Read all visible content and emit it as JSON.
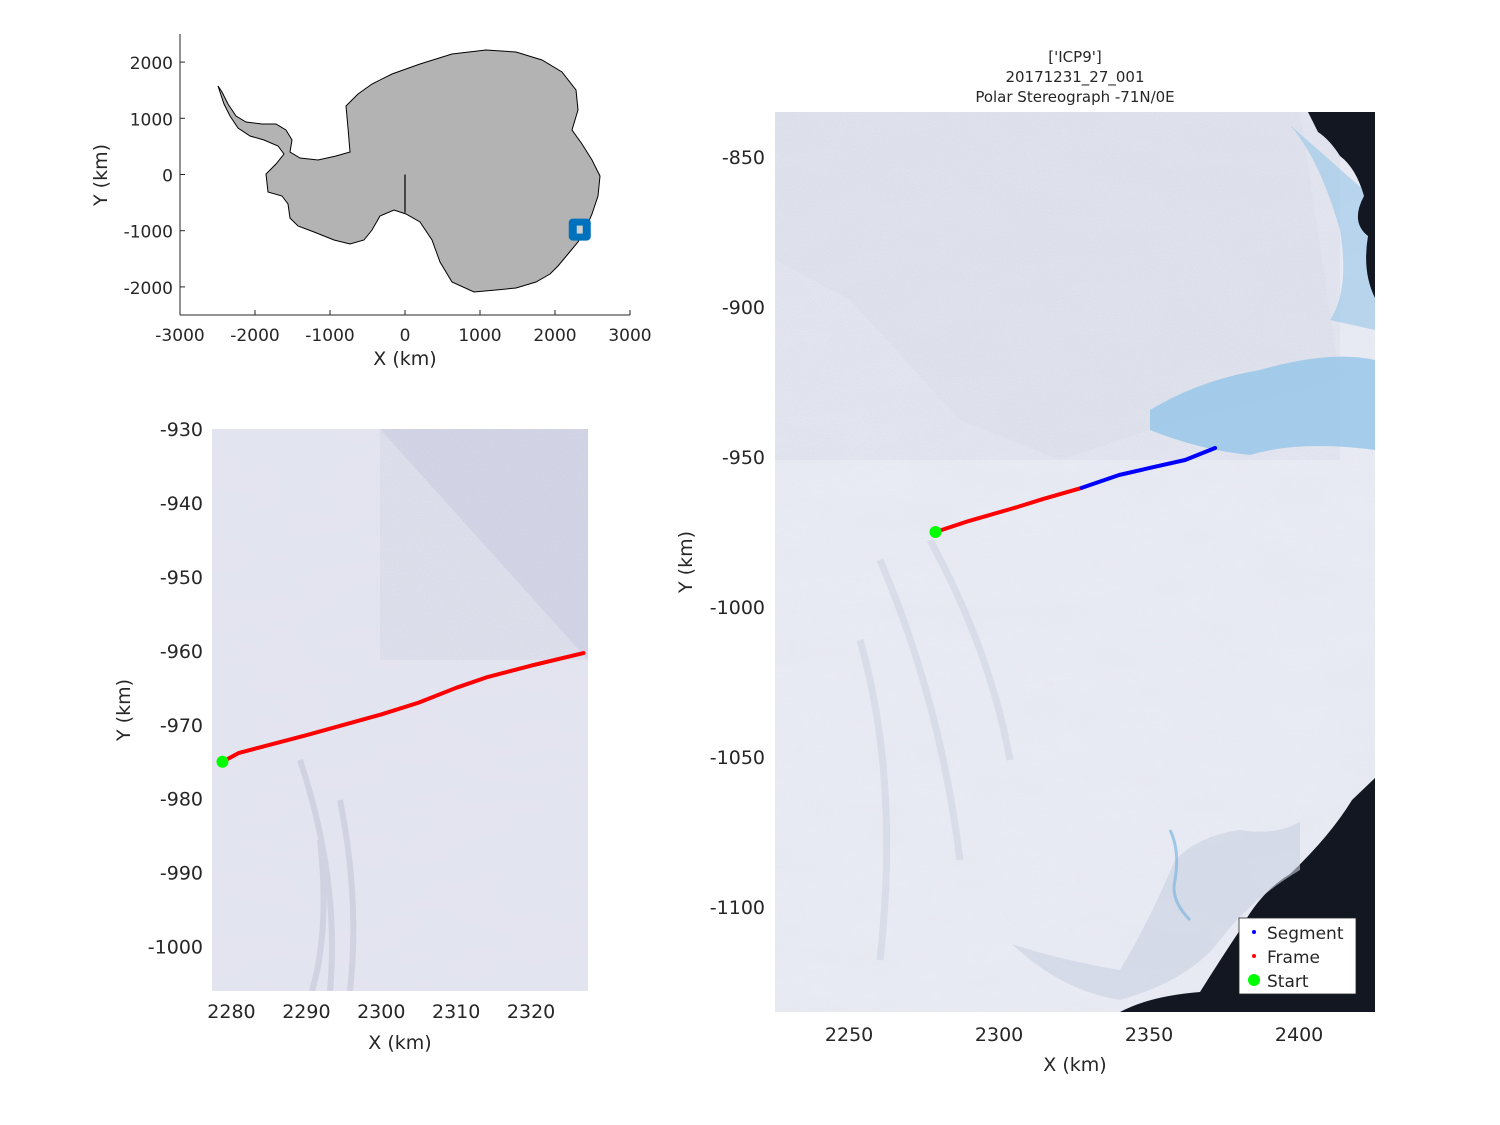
{
  "colors": {
    "land": "#b3b3b3",
    "ice": "#e9ebf4",
    "ice_shadow": "#cfd3e2",
    "ocean": "#121722",
    "melt": "#8fc3e8",
    "segment": "#0000ff",
    "frame": "#ff0000",
    "start": "#00ff00",
    "locator": "#0072bd",
    "axis": "#262626"
  },
  "overview": {
    "xlabel": "X (km)",
    "ylabel": "Y (km)",
    "xlim": [
      -3000,
      3000
    ],
    "ylim": [
      -2500,
      2500
    ],
    "xticks": [
      -3000,
      -2000,
      -1000,
      0,
      1000,
      2000,
      3000
    ],
    "yticks": [
      -2000,
      -1000,
      0,
      1000,
      2000
    ],
    "xtick_labels": [
      "-3000",
      "-2000",
      "-1000",
      "0",
      "1000",
      "2000",
      "3000"
    ],
    "ytick_labels": [
      "-2000",
      "-1000",
      "0",
      "1000",
      "2000"
    ],
    "locator_box": {
      "x": 2330,
      "y": -980
    },
    "meridian_line": {
      "x": 0,
      "y_from": 0,
      "y_to": -680
    }
  },
  "zoom": {
    "xlabel": "X (km)",
    "ylabel": "Y (km)",
    "xlim": [
      2277.4,
      2327.6
    ],
    "ylim": [
      -1006,
      -930
    ],
    "xticks": [
      2280,
      2290,
      2300,
      2310,
      2320
    ],
    "yticks": [
      -930,
      -940,
      -950,
      -960,
      -970,
      -980,
      -990,
      -1000
    ],
    "xtick_labels": [
      "2280",
      "2290",
      "2300",
      "2310",
      "2320"
    ],
    "ytick_labels": [
      "-930",
      "-940",
      "-950",
      "-960",
      "-970",
      "-980",
      "-990",
      "-1000"
    ],
    "frame_track": [
      [
        2278.8,
        -975.0
      ],
      [
        2281.0,
        -973.8
      ],
      [
        2290.0,
        -971.4
      ],
      [
        2300.0,
        -968.6
      ],
      [
        2305.0,
        -967.0
      ],
      [
        2310.0,
        -965.0
      ],
      [
        2314.0,
        -963.6
      ],
      [
        2320.0,
        -962.0
      ],
      [
        2327.0,
        -960.3
      ]
    ],
    "start": [
      2278.8,
      -975.0
    ]
  },
  "main": {
    "title_lines": [
      "['ICP9']",
      "20171231_27_001",
      "Polar Stereograph -71N/0E"
    ],
    "xlabel": "X (km)",
    "ylabel": "Y (km)",
    "xlim": [
      2225.3,
      2425.3
    ],
    "ylim": [
      -1135,
      -835
    ],
    "xticks": [
      2250,
      2300,
      2350,
      2400
    ],
    "yticks": [
      -850,
      -900,
      -950,
      -1000,
      -1050,
      -1100
    ],
    "xtick_labels": [
      "2250",
      "2300",
      "2350",
      "2400"
    ],
    "ytick_labels": [
      "-850",
      "-900",
      "-950",
      "-1000",
      "-1050",
      "-1100"
    ],
    "frame_track": [
      [
        2278.8,
        -975.0
      ],
      [
        2290.0,
        -971.3
      ],
      [
        2305.0,
        -967.0
      ],
      [
        2315.0,
        -963.9
      ],
      [
        2327.5,
        -960.3
      ]
    ],
    "segment_track": [
      [
        2327.5,
        -960.3
      ],
      [
        2340.0,
        -956.0
      ],
      [
        2350.0,
        -953.7
      ],
      [
        2362.0,
        -951.0
      ],
      [
        2372.0,
        -947.0
      ]
    ],
    "start": [
      2278.8,
      -975.0
    ],
    "legend": [
      "Segment",
      "Frame",
      "Start"
    ],
    "legend_location": "bottom-right"
  }
}
